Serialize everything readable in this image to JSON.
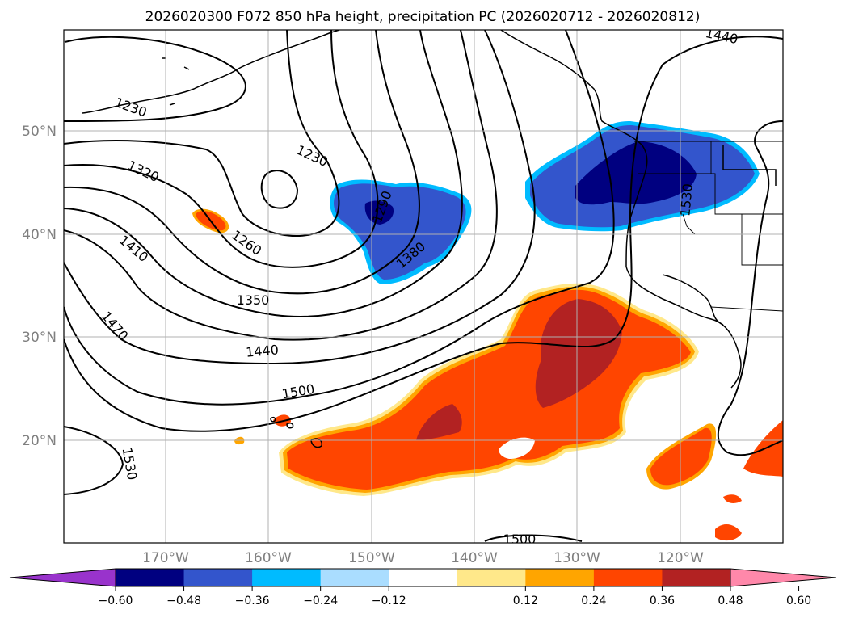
{
  "title": "2026020300 F072 850 hPa height, precipitation PC (2026020712 - 2026020812)",
  "lat_labels": [
    "50°N",
    "40°N",
    "30°N",
    "20°N"
  ],
  "lon_labels": [
    "170°W",
    "160°W",
    "150°W",
    "140°W",
    "130°W",
    "120°W"
  ],
  "contour_labels": [
    "1230",
    "1320",
    "1230",
    "1260",
    "1410",
    "1350",
    "1470",
    "1440",
    "1500",
    "1530",
    "1290",
    "1380",
    "1440",
    "1530",
    "1500"
  ],
  "colorbar": {
    "ticks": [
      "−0.60",
      "−0.48",
      "−0.36",
      "−0.24",
      "−0.12",
      "0.12",
      "0.24",
      "0.36",
      "0.48",
      "0.60"
    ],
    "colors": [
      "#9933cc",
      "#000080",
      "#3355cc",
      "#00bbff",
      "#aaddff",
      "#ffffff",
      "#ffe88a",
      "#ffa500",
      "#ff4500",
      "#b22222",
      "#ff88aa"
    ]
  },
  "field_colors": {
    "neg_light": "#00bbff",
    "neg_mid": "#3355cc",
    "neg_dark": "#000080",
    "pos_light": "#ffa500",
    "pos_mid": "#ff4500",
    "pos_dark": "#b22222"
  }
}
